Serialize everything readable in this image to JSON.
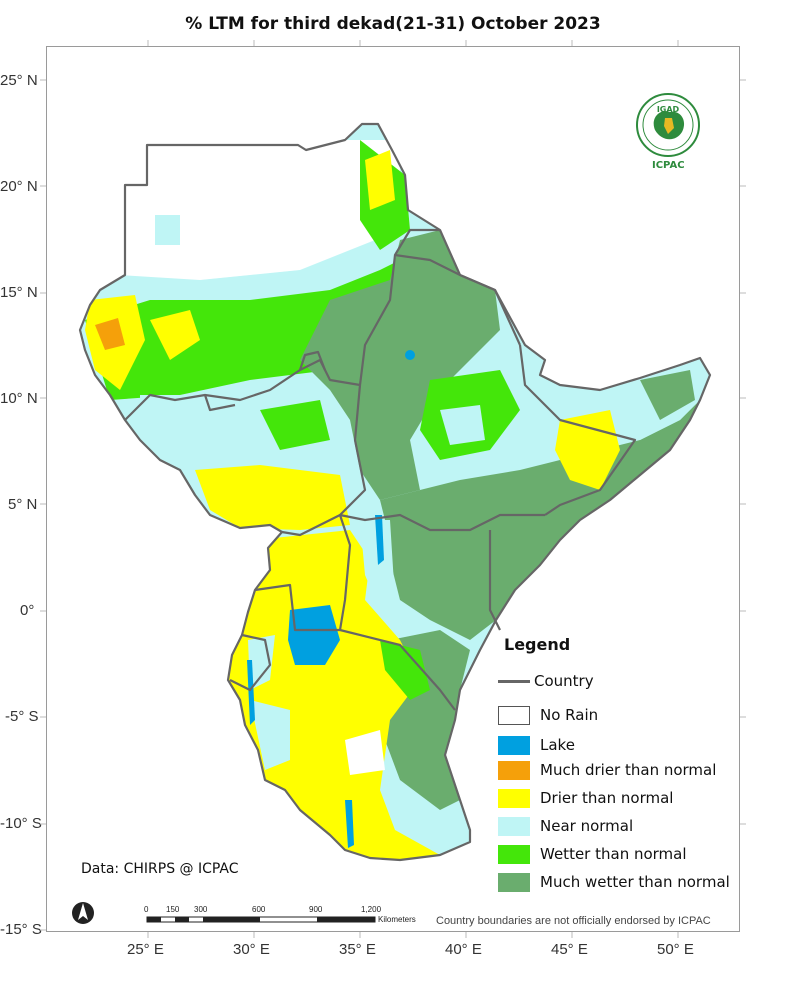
{
  "title": "% LTM  for third dekad(21-31) October 2023",
  "latitude_labels": [
    "25° N",
    "20° N",
    "15° N",
    "10° N",
    "5° N",
    "0°",
    "-5° S",
    "-10° S",
    "-15° S"
  ],
  "longitude_labels": [
    "25° E",
    "30° E",
    "35° E",
    "40° E",
    "45° E",
    "50° E"
  ],
  "legend": {
    "title": "Legend",
    "country_label": "Country",
    "items": [
      {
        "label": "No Rain",
        "color": "#ffffff"
      },
      {
        "label": "Lake",
        "color": "#00a0e0"
      },
      {
        "label": "Much drier than normal",
        "color": "#f5a00a"
      },
      {
        "label": "Drier than normal",
        "color": "#ffff00"
      },
      {
        "label": "Near normal",
        "color": "#bff5f5"
      },
      {
        "label": "Wetter than normal",
        "color": "#44e60a"
      },
      {
        "label": "Much wetter than normal",
        "color": "#6aad6e"
      }
    ]
  },
  "credit": "Data: CHIRPS @ ICPAC",
  "disclaimer": "Country boundaries are not officially endorsed by ICPAC",
  "scale_bar": {
    "ticks": [
      "0",
      "150",
      "300",
      "600",
      "900",
      "1,200"
    ],
    "unit": "Kilometers"
  },
  "logo": {
    "top_text": "IGAD",
    "bottom_text": "ICPAC"
  },
  "colors": {
    "border": "#666666",
    "frame": "#9a9a9a"
  }
}
